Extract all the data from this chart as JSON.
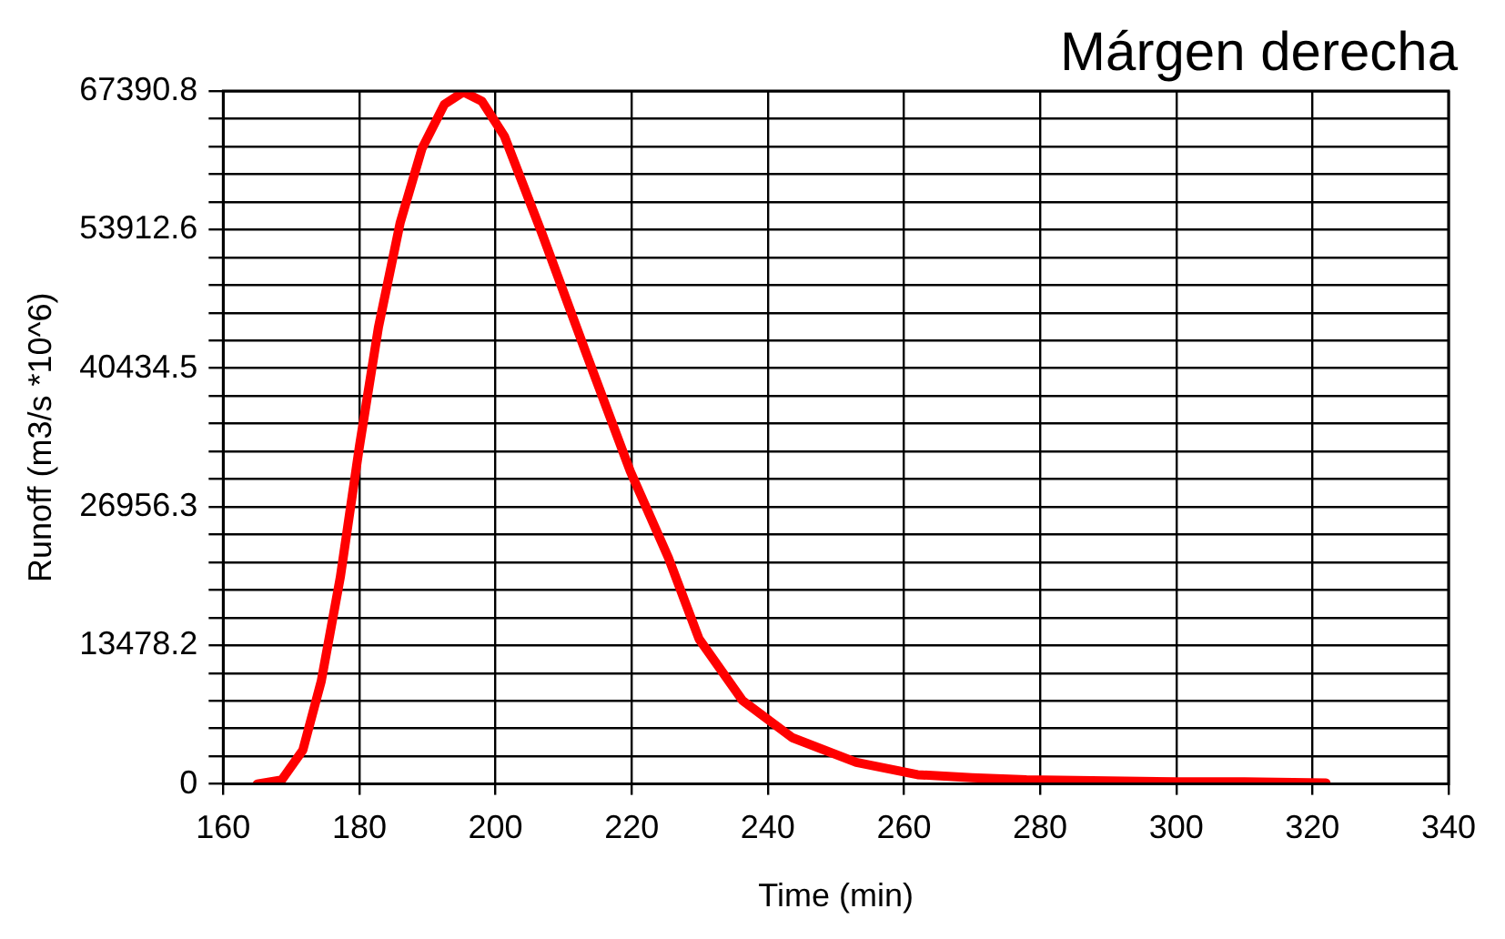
{
  "chart_data": {
    "type": "line",
    "title": "Márgen derecha",
    "xlabel": "Time (min)",
    "ylabel": "Runoff (m3/s *10^6)",
    "x": [
      165,
      168.6,
      171.7,
      174.4,
      177.2,
      180,
      182.8,
      186,
      189.2,
      192.5,
      195.3,
      198,
      201.3,
      206.9,
      213.3,
      219.8,
      225.4,
      229.9,
      236.3,
      243.6,
      253,
      262,
      270,
      278,
      290,
      300,
      310,
      322
    ],
    "series": [
      {
        "color": "#ff0000",
        "values": [
          0,
          400,
          3300,
          10000,
          20100,
          32800,
          44400,
          54600,
          61800,
          66100,
          67300,
          66400,
          63000,
          53400,
          41900,
          30400,
          22000,
          14100,
          8100,
          4500,
          2100,
          900,
          600,
          400,
          300,
          200,
          200,
          100
        ]
      }
    ],
    "xlim": [
      160,
      340
    ],
    "xticks": [
      160,
      180,
      200,
      220,
      240,
      260,
      280,
      300,
      320,
      340
    ],
    "ylim": [
      0,
      67390.8
    ],
    "yticks": [
      0,
      {
        "value": 2695.63,
        "label": null
      },
      {
        "value": 5391.26,
        "label": null
      },
      {
        "value": 8086.9,
        "label": null
      },
      {
        "value": 10782.6,
        "label": null
      },
      13478.2,
      {
        "value": 16173.8,
        "label": null
      },
      {
        "value": 18869.4,
        "label": null
      },
      {
        "value": 21565.1,
        "label": null
      },
      {
        "value": 24260.7,
        "label": null
      },
      26956.3,
      {
        "value": 29651.9,
        "label": null
      },
      {
        "value": 32347.6,
        "label": null
      },
      {
        "value": 35043.2,
        "label": null
      },
      {
        "value": 37738.8,
        "label": null
      },
      40434.5,
      {
        "value": 43130.1,
        "label": null
      },
      {
        "value": 45825.7,
        "label": null
      },
      {
        "value": 48521.3,
        "label": null
      },
      {
        "value": 51217,
        "label": null
      },
      53912.6,
      {
        "value": 56608.2,
        "label": null
      },
      {
        "value": 59303.9,
        "label": null
      },
      {
        "value": 61999.5,
        "label": null
      },
      {
        "value": 64695.1,
        "label": null
      },
      67390.8
    ],
    "grid": true,
    "legend": false,
    "marker": "none",
    "line_style": "solid"
  }
}
